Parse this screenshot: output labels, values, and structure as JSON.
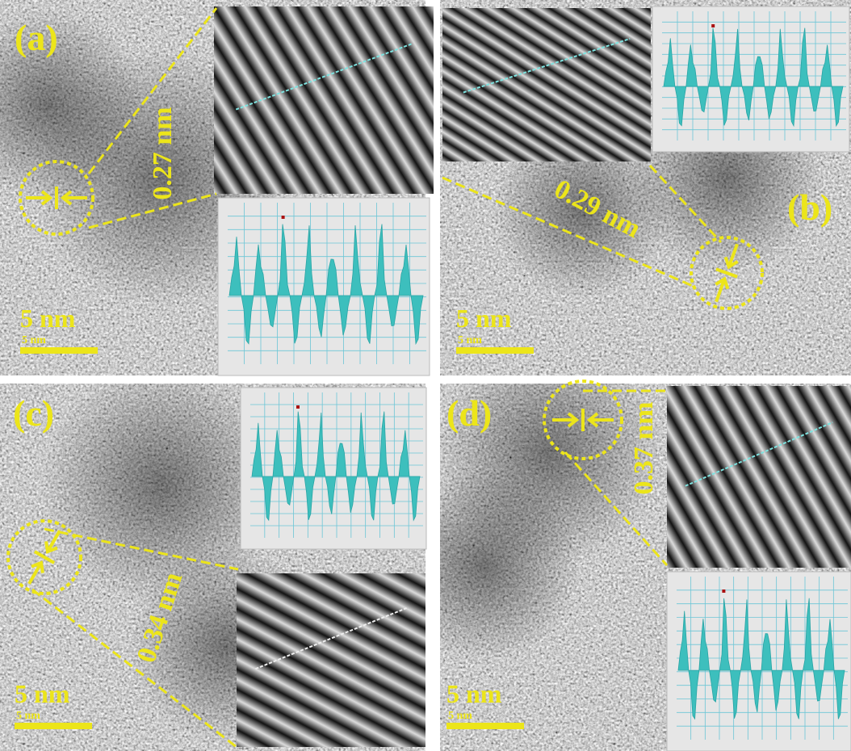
{
  "panels": [
    {
      "label": "(a)",
      "spacing": "0.27 nm",
      "scale_bar": "5 nm",
      "scale_bar_small": "5 nm"
    },
    {
      "label": "(b)",
      "spacing": "0.29 nm",
      "scale_bar": "5 nm",
      "scale_bar_small": "5 nm"
    },
    {
      "label": "(c)",
      "spacing": "0.34 nm",
      "scale_bar": "5 nm",
      "scale_bar_small": "5 nm"
    },
    {
      "label": "(d)",
      "spacing": "0.37 nm",
      "scale_bar": "5 nm",
      "scale_bar_small": "5 nm"
    }
  ]
}
